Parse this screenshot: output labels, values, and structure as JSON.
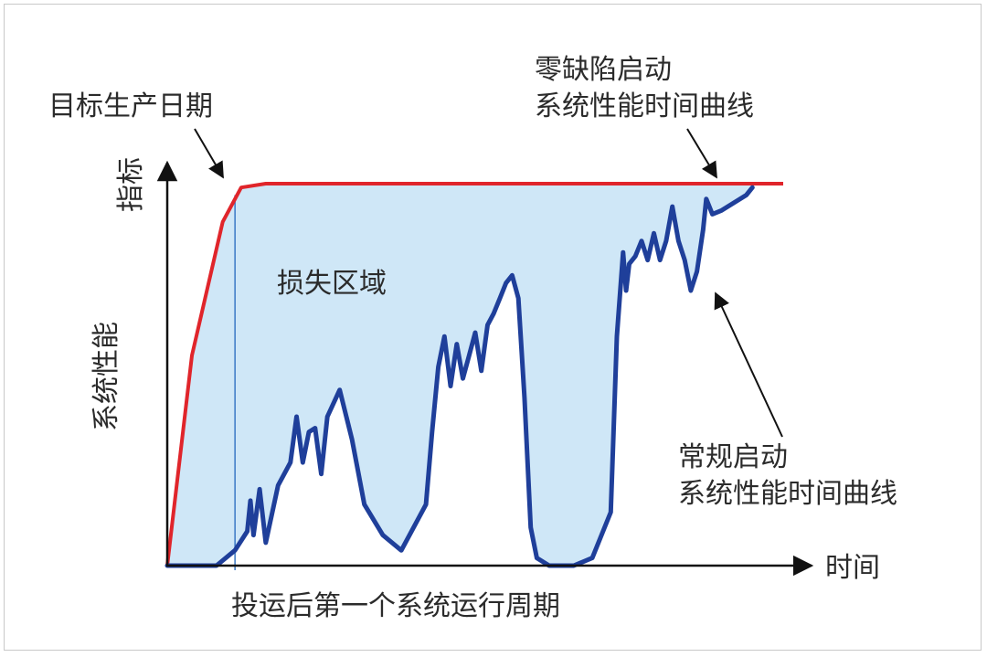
{
  "labels": {
    "target_date": "目标生产日期",
    "zero_defect_line1": "零缺陷启动",
    "zero_defect_line2": "系统性能时间曲线",
    "y_axis_line1": "指标",
    "y_axis_line2": "系统性能",
    "loss_area": "损失区域",
    "conventional_line1": "常规启动",
    "conventional_line2": "系统性能时间曲线",
    "x_axis": "时间",
    "x_period": "投运后第一个系统运行周期"
  },
  "colors": {
    "target_curve": "#e0252b",
    "actual_curve": "#1f3f9a",
    "loss_fill": "#cfe7f7",
    "marker_line": "#3a78c4",
    "axis": "#111111",
    "text": "#2b2b2b"
  },
  "curves": {
    "zero_defect": [
      [
        0,
        0
      ],
      [
        0.04,
        0.55
      ],
      [
        0.09,
        0.9
      ],
      [
        0.12,
        0.99
      ],
      [
        0.16,
        1.0
      ],
      [
        1.0,
        1.0
      ]
    ],
    "conventional": [
      [
        0,
        0
      ],
      [
        0.08,
        0
      ],
      [
        0.11,
        0.04
      ],
      [
        0.13,
        0.09
      ],
      [
        0.135,
        0.17
      ],
      [
        0.14,
        0.08
      ],
      [
        0.15,
        0.2
      ],
      [
        0.16,
        0.06
      ],
      [
        0.18,
        0.21
      ],
      [
        0.2,
        0.27
      ],
      [
        0.21,
        0.39
      ],
      [
        0.22,
        0.27
      ],
      [
        0.23,
        0.35
      ],
      [
        0.24,
        0.36
      ],
      [
        0.25,
        0.24
      ],
      [
        0.26,
        0.39
      ],
      [
        0.28,
        0.46
      ],
      [
        0.3,
        0.33
      ],
      [
        0.32,
        0.16
      ],
      [
        0.35,
        0.08
      ],
      [
        0.38,
        0.04
      ],
      [
        0.4,
        0.1
      ],
      [
        0.42,
        0.16
      ],
      [
        0.43,
        0.35
      ],
      [
        0.44,
        0.52
      ],
      [
        0.45,
        0.6
      ],
      [
        0.46,
        0.47
      ],
      [
        0.47,
        0.58
      ],
      [
        0.48,
        0.49
      ],
      [
        0.49,
        0.55
      ],
      [
        0.5,
        0.61
      ],
      [
        0.51,
        0.51
      ],
      [
        0.52,
        0.63
      ],
      [
        0.53,
        0.66
      ],
      [
        0.54,
        0.7
      ],
      [
        0.55,
        0.74
      ],
      [
        0.56,
        0.76
      ],
      [
        0.57,
        0.7
      ],
      [
        0.58,
        0.44
      ],
      [
        0.59,
        0.1
      ],
      [
        0.6,
        0.02
      ],
      [
        0.62,
        0
      ],
      [
        0.66,
        0
      ],
      [
        0.69,
        0.02
      ],
      [
        0.72,
        0.14
      ],
      [
        0.73,
        0.6
      ],
      [
        0.74,
        0.82
      ],
      [
        0.745,
        0.72
      ],
      [
        0.75,
        0.79
      ],
      [
        0.76,
        0.81
      ],
      [
        0.77,
        0.85
      ],
      [
        0.78,
        0.8
      ],
      [
        0.79,
        0.87
      ],
      [
        0.8,
        0.8
      ],
      [
        0.81,
        0.85
      ],
      [
        0.82,
        0.94
      ],
      [
        0.83,
        0.85
      ],
      [
        0.84,
        0.8
      ],
      [
        0.85,
        0.72
      ],
      [
        0.86,
        0.77
      ],
      [
        0.87,
        0.88
      ],
      [
        0.875,
        0.96
      ],
      [
        0.885,
        0.92
      ],
      [
        0.9,
        0.93
      ],
      [
        0.92,
        0.95
      ],
      [
        0.94,
        0.97
      ],
      [
        0.95,
        0.99
      ]
    ]
  },
  "marker_x": 0.11
}
